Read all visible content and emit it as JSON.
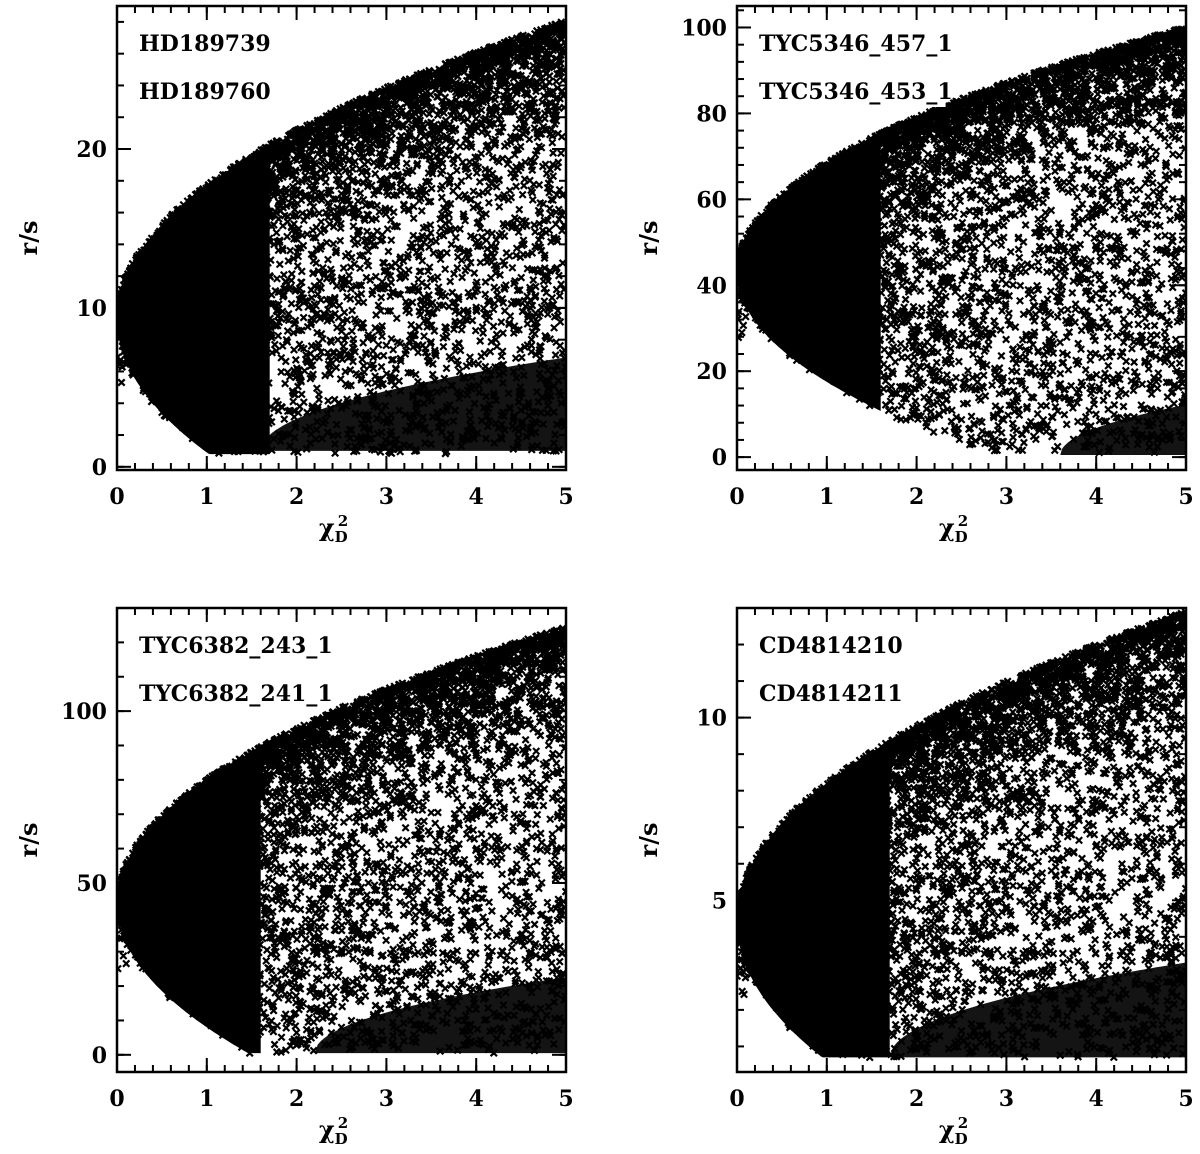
{
  "figure": {
    "xlabel": "χ",
    "xlabel_sub": "D",
    "xlabel_sup": "2",
    "ylabel": "r/s"
  },
  "chart_data": [
    {
      "type": "scatter",
      "annotations": [
        "HD189739",
        "HD189760"
      ],
      "xlabel": "χ²_D",
      "ylabel": "r/s",
      "xlim": [
        0,
        5
      ],
      "ylim": [
        -0.2,
        29
      ],
      "xticks": [
        0,
        1,
        2,
        3,
        4,
        5
      ],
      "yticks": [
        0,
        10,
        20
      ],
      "xtick_labels": [
        "0",
        "1",
        "2",
        "3",
        "4",
        "5"
      ],
      "ytick_labels": [
        "0",
        "10",
        "20"
      ],
      "envelope": {
        "center": 9.3,
        "k_outer": 8.4,
        "r_min": 0.8,
        "x_inner_start": 1.6,
        "k_inner": 5.8,
        "inner_floor": 1.0,
        "dense_width": 1.1
      },
      "marker": "x",
      "grid": false,
      "legend": "none"
    },
    {
      "type": "scatter",
      "annotations": [
        "TYC5346_457_1",
        "TYC5346_453_1"
      ],
      "xlabel": "χ²_D",
      "ylabel": "r/s",
      "xlim": [
        0,
        5
      ],
      "ylim": [
        -3,
        105
      ],
      "xticks": [
        0,
        1,
        2,
        3,
        4,
        5
      ],
      "yticks": [
        0,
        20,
        40,
        60,
        80,
        100
      ],
      "xtick_labels": [
        "0",
        "1",
        "2",
        "3",
        "4",
        "5"
      ],
      "ytick_labels": [
        "0",
        "20",
        "40",
        "60",
        "80",
        "100"
      ],
      "envelope": {
        "center": 43,
        "k_outer": 25.5,
        "r_min": 0.5,
        "x_inner_start": 3.6,
        "k_inner": 18,
        "inner_floor": 0.5,
        "dense_width": 1.0
      },
      "marker": "x",
      "grid": false,
      "legend": "none"
    },
    {
      "type": "scatter",
      "annotations": [
        "TYC6382_243_1",
        "TYC6382_241_1"
      ],
      "xlabel": "χ²_D",
      "ylabel": "r/s",
      "xlim": [
        0,
        5
      ],
      "ylim": [
        -5,
        130
      ],
      "xticks": [
        0,
        1,
        2,
        3,
        4,
        5
      ],
      "yticks": [
        0,
        50,
        100
      ],
      "xtick_labels": [
        "0",
        "1",
        "2",
        "3",
        "4",
        "5"
      ],
      "ytick_labels": [
        "0",
        "50",
        "100"
      ],
      "envelope": {
        "center": 44,
        "k_outer": 36,
        "r_min": 0.5,
        "x_inner_start": 2.2,
        "k_inner": 24,
        "inner_floor": 0.5,
        "dense_width": 1.0
      },
      "marker": "x",
      "grid": false,
      "legend": "none"
    },
    {
      "type": "scatter",
      "annotations": [
        "CD4814210",
        "CD4814211"
      ],
      "xlabel": "χ²_D",
      "ylabel": "r/s",
      "xlim": [
        0,
        5
      ],
      "ylim": [
        0.3,
        13
      ],
      "xticks": [
        0,
        1,
        2,
        3,
        4,
        5
      ],
      "yticks": [
        5,
        10
      ],
      "xtick_labels": [
        "0",
        "1",
        "2",
        "3",
        "4",
        "5"
      ],
      "ytick_labels": [
        "5",
        "10"
      ],
      "envelope": {
        "center": 4.4,
        "k_outer": 3.8,
        "r_min": 0.7,
        "x_inner_start": 1.7,
        "k_inner": 2.6,
        "inner_floor": 0.7,
        "dense_width": 1.1
      },
      "marker": "x",
      "grid": false,
      "legend": "none"
    }
  ]
}
